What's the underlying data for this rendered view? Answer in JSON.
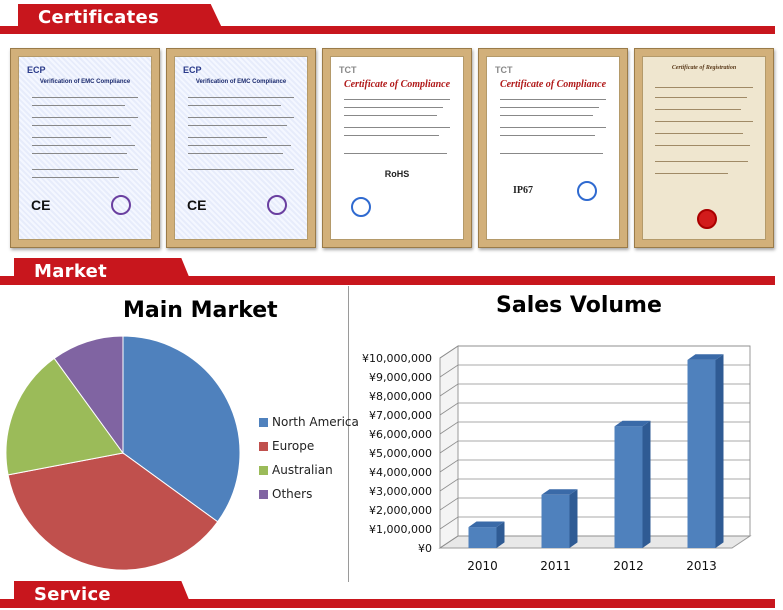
{
  "sections": {
    "certificates": "Certificates",
    "market": "Market",
    "service": "Service"
  },
  "certificates": [
    {
      "brand": "ECP",
      "title": "Verification of EMC Compliance"
    },
    {
      "brand": "ECP",
      "title": "Verification of EMC Compliance"
    },
    {
      "brand": "TCT",
      "title": "Certificate of Compliance",
      "mark": "RoHS"
    },
    {
      "brand": "TCT",
      "title": "Certificate of Compliance",
      "mark": "IP67"
    },
    {
      "brand": "",
      "title": "Certificate of Registration"
    }
  ],
  "chart_data": [
    {
      "type": "pie",
      "title": "Main Market",
      "categories": [
        "North America",
        "Europe",
        "Australian",
        "Others"
      ],
      "values": [
        35,
        37,
        18,
        10
      ],
      "colors": [
        "#4f81bd",
        "#c0504d",
        "#9bbb59",
        "#8064a2"
      ],
      "legend": "right"
    },
    {
      "type": "bar",
      "title": "Sales Volume",
      "categories": [
        "2010",
        "2011",
        "2012",
        "2013"
      ],
      "values": [
        1100000,
        2800000,
        6400000,
        9900000
      ],
      "ylim": [
        0,
        10000000
      ],
      "yticks": [
        "¥0",
        "¥1,000,000",
        "¥2,000,000",
        "¥3,000,000",
        "¥4,000,000",
        "¥5,000,000",
        "¥6,000,000",
        "¥7,000,000",
        "¥8,000,000",
        "¥9,000,000",
        "¥10,000,000"
      ],
      "color": "#4f81bd",
      "grid": true
    }
  ]
}
